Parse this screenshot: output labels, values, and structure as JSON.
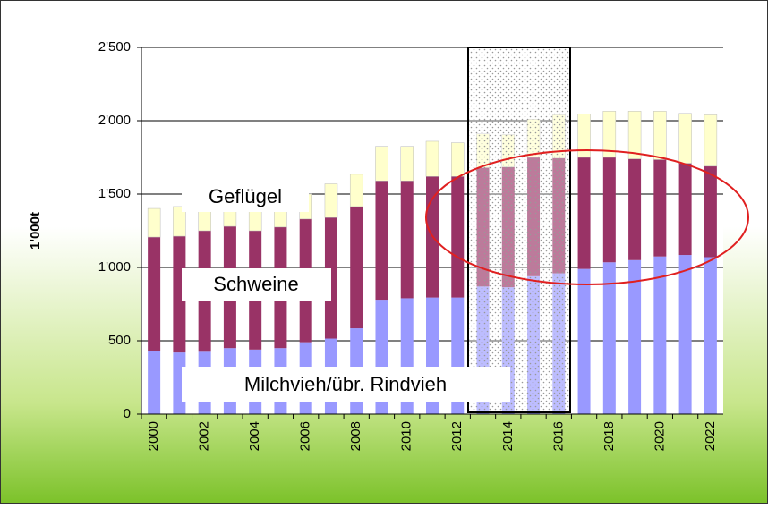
{
  "chart_data": {
    "type": "stacked_bar",
    "y_label": "1'000t",
    "categories": [
      "2000",
      null,
      "2002",
      null,
      "2004",
      null,
      "2006",
      null,
      "2008",
      null,
      "2010",
      null,
      "2012",
      null,
      "2014",
      null,
      "2016",
      null,
      "2018",
      null,
      "2020",
      null,
      "2022"
    ],
    "series": [
      {
        "name": "Milchvieh/übr. Rindvieh",
        "color": "#9999ff",
        "values": [
          427,
          420,
          425,
          450,
          440,
          450,
          490,
          515,
          585,
          780,
          790,
          795,
          795,
          870,
          865,
          940,
          960,
          990,
          1035,
          1050,
          1075,
          1085,
          1070
        ]
      },
      {
        "name": "Schweine",
        "color": "#993366",
        "values": [
          780,
          793,
          825,
          830,
          810,
          825,
          840,
          825,
          830,
          810,
          800,
          825,
          825,
          810,
          820,
          810,
          785,
          760,
          715,
          690,
          660,
          625,
          620
        ]
      },
      {
        "name": "Geflügel",
        "color": "#ffffcc",
        "values": [
          195,
          202,
          180,
          170,
          190,
          175,
          170,
          230,
          220,
          235,
          235,
          240,
          230,
          230,
          220,
          260,
          295,
          295,
          315,
          325,
          330,
          340,
          350
        ]
      }
    ],
    "ylim": [
      0,
      2500
    ],
    "yticks": [
      0,
      {
        "value": 500,
        "label": "500"
      },
      {
        "value": 1000,
        "label": "1'000"
      },
      {
        "value": 1500,
        "label": "1'500"
      },
      {
        "value": 2000,
        "label": "2'000"
      },
      {
        "value": 2500,
        "label": "2'500"
      }
    ],
    "grid": true
  }
}
